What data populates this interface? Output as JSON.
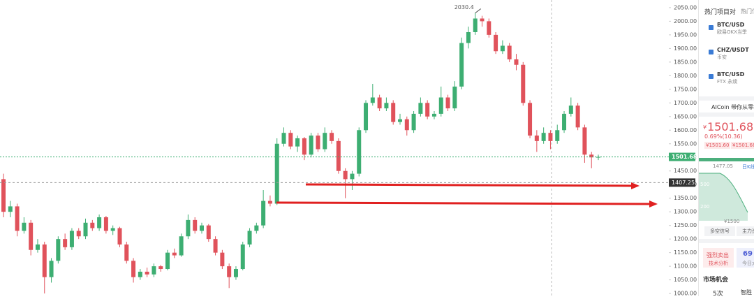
{
  "chart_data": {
    "type": "candlestick",
    "candles": [
      [
        1420,
        1440,
        1280,
        1300
      ],
      [
        1300,
        1340,
        1280,
        1320
      ],
      [
        1320,
        1330,
        1210,
        1230
      ],
      [
        1230,
        1280,
        1220,
        1260
      ],
      [
        1260,
        1270,
        1140,
        1160
      ],
      [
        1160,
        1200,
        1150,
        1180
      ],
      [
        1180,
        1190,
        1000,
        1060
      ],
      [
        1060,
        1130,
        1040,
        1120
      ],
      [
        1120,
        1210,
        1110,
        1200
      ],
      [
        1200,
        1220,
        1160,
        1170
      ],
      [
        1170,
        1240,
        1160,
        1230
      ],
      [
        1230,
        1240,
        1200,
        1210
      ],
      [
        1210,
        1275,
        1200,
        1260
      ],
      [
        1260,
        1270,
        1230,
        1240
      ],
      [
        1240,
        1290,
        1230,
        1280
      ],
      [
        1280,
        1285,
        1220,
        1230
      ],
      [
        1230,
        1250,
        1215,
        1240
      ],
      [
        1240,
        1245,
        1170,
        1180
      ],
      [
        1180,
        1190,
        1110,
        1120
      ],
      [
        1120,
        1130,
        1040,
        1060
      ],
      [
        1060,
        1090,
        1050,
        1080
      ],
      [
        1080,
        1095,
        1060,
        1070
      ],
      [
        1070,
        1110,
        1060,
        1100
      ],
      [
        1100,
        1105,
        1080,
        1090
      ],
      [
        1090,
        1160,
        1085,
        1150
      ],
      [
        1150,
        1165,
        1130,
        1140
      ],
      [
        1140,
        1220,
        1135,
        1210
      ],
      [
        1210,
        1290,
        1200,
        1270
      ],
      [
        1270,
        1280,
        1220,
        1230
      ],
      [
        1230,
        1260,
        1220,
        1250
      ],
      [
        1250,
        1255,
        1190,
        1200
      ],
      [
        1200,
        1210,
        1140,
        1150
      ],
      [
        1150,
        1160,
        1090,
        1100
      ],
      [
        1100,
        1110,
        1020,
        1060
      ],
      [
        1060,
        1100,
        1050,
        1090
      ],
      [
        1090,
        1190,
        1085,
        1180
      ],
      [
        1180,
        1240,
        1170,
        1230
      ],
      [
        1230,
        1260,
        1220,
        1250
      ],
      [
        1250,
        1380,
        1240,
        1340
      ],
      [
        1340,
        1360,
        1320,
        1330
      ],
      [
        1330,
        1570,
        1325,
        1550
      ],
      [
        1550,
        1610,
        1540,
        1590
      ],
      [
        1590,
        1600,
        1530,
        1540
      ],
      [
        1540,
        1580,
        1520,
        1570
      ],
      [
        1570,
        1575,
        1490,
        1510
      ],
      [
        1510,
        1590,
        1500,
        1580
      ],
      [
        1580,
        1590,
        1520,
        1530
      ],
      [
        1530,
        1610,
        1520,
        1590
      ],
      [
        1590,
        1600,
        1550,
        1560
      ],
      [
        1560,
        1570,
        1440,
        1450
      ],
      [
        1450,
        1460,
        1350,
        1420
      ],
      [
        1420,
        1450,
        1380,
        1440
      ],
      [
        1440,
        1610,
        1430,
        1600
      ],
      [
        1600,
        1710,
        1590,
        1700
      ],
      [
        1700,
        1770,
        1690,
        1720
      ],
      [
        1720,
        1730,
        1670,
        1680
      ],
      [
        1680,
        1720,
        1670,
        1700
      ],
      [
        1700,
        1710,
        1620,
        1630
      ],
      [
        1630,
        1660,
        1620,
        1640
      ],
      [
        1640,
        1650,
        1580,
        1600
      ],
      [
        1600,
        1670,
        1590,
        1660
      ],
      [
        1660,
        1720,
        1650,
        1700
      ],
      [
        1700,
        1710,
        1640,
        1650
      ],
      [
        1650,
        1670,
        1640,
        1660
      ],
      [
        1660,
        1760,
        1650,
        1720
      ],
      [
        1720,
        1730,
        1670,
        1680
      ],
      [
        1680,
        1780,
        1670,
        1760
      ],
      [
        1760,
        1940,
        1750,
        1920
      ],
      [
        1920,
        1980,
        1900,
        1960
      ],
      [
        1960,
        2030.4,
        1950,
        2010
      ],
      [
        2010,
        2020,
        1980,
        2000
      ],
      [
        2000,
        2010,
        1940,
        1950
      ],
      [
        1950,
        1960,
        1880,
        1890
      ],
      [
        1890,
        1930,
        1880,
        1910
      ],
      [
        1910,
        1920,
        1850,
        1860
      ],
      [
        1860,
        1880,
        1820,
        1840
      ],
      [
        1840,
        1850,
        1690,
        1700
      ],
      [
        1700,
        1710,
        1570,
        1580
      ],
      [
        1580,
        1600,
        1520,
        1560
      ],
      [
        1560,
        1610,
        1550,
        1590
      ],
      [
        1590,
        1600,
        1530,
        1560
      ],
      [
        1560,
        1620,
        1550,
        1600
      ],
      [
        1600,
        1670,
        1590,
        1660
      ],
      [
        1660,
        1720,
        1650,
        1690
      ],
      [
        1690,
        1700,
        1600,
        1610
      ],
      [
        1610,
        1620,
        1480,
        1510
      ],
      [
        1510,
        1520,
        1460,
        1500
      ],
      [
        1500,
        1510,
        1490,
        1501.68
      ]
    ],
    "marker_price": 1407.25,
    "up_color": "#3dae72",
    "down_color": "#e0525b",
    "ylim": [
      990,
      2078
    ],
    "yticks": [
      {
        "value": 1000,
        "label": "1000.00"
      },
      {
        "value": 1050,
        "label": "1050.00"
      },
      {
        "value": 1100,
        "label": "1100.00"
      },
      {
        "value": 1150,
        "label": "1150.00"
      },
      {
        "value": 1200,
        "label": "1200.00"
      },
      {
        "value": 1250,
        "label": "1250.00"
      },
      {
        "value": 1300,
        "label": "1300.00"
      },
      {
        "value": 1350,
        "label": "1350.00"
      },
      {
        "value": 1400,
        "label": "1400.00"
      },
      {
        "value": 1450,
        "label": "1450.00"
      },
      {
        "value": 1500,
        "label": "1500.00"
      },
      {
        "value": 1550,
        "label": "1550.00"
      },
      {
        "value": 1600,
        "label": "1600.00"
      },
      {
        "value": 1650,
        "label": "1650.00"
      },
      {
        "value": 1700,
        "label": "1700.00"
      },
      {
        "value": 1750,
        "label": "1750.00"
      },
      {
        "value": 1800,
        "label": "1800.00"
      },
      {
        "value": 1850,
        "label": "1850.00"
      },
      {
        "value": 1900,
        "label": "1900.00"
      },
      {
        "value": 1950,
        "label": "1950.00"
      },
      {
        "value": 2000,
        "label": "2000.00"
      },
      {
        "value": 2050,
        "label": "2050.00"
      }
    ]
  },
  "sidebar": {
    "tabs": [
      "热门项目对",
      "热门信"
    ],
    "pairs": [
      {
        "symbol": "BTC/USD",
        "market": "欧易OKX当季"
      },
      {
        "symbol": "CHZ/USDT",
        "market": "币安"
      },
      {
        "symbol": "BTC/USD",
        "market": "FTX 永续"
      }
    ],
    "banner": "AICoin 带你从零构",
    "currency": "¥",
    "price": "1501.68",
    "change": "0.69%(10.36)",
    "bid": "¥1501.60",
    "ask": "¥1501.68",
    "mini_high": "1477.05",
    "mini_tab": "日K线",
    "mini_levels": [
      "500",
      "200"
    ],
    "mini_low": "¥1500",
    "signals": [
      "多空信号",
      "主力资"
    ],
    "rating": {
      "label": "强烈卖出",
      "sub": "技术分析"
    },
    "score": {
      "label": "69",
      "sub": "今日大"
    },
    "section": "市场机会",
    "count": "5次",
    "extra": "智胜"
  }
}
